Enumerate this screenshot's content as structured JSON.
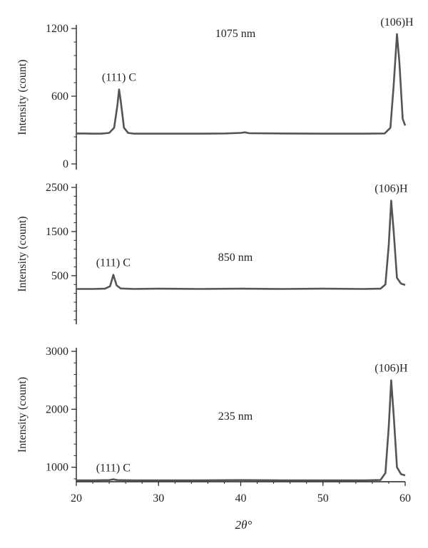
{
  "chart_data": [
    {
      "type": "line",
      "annotation": "1075 nm",
      "ylabel": "Intensity (count)",
      "xlabel": "",
      "xlim": [
        20,
        60
      ],
      "ylim": [
        0,
        1200
      ],
      "yticks": [
        0,
        600,
        1200
      ],
      "peak_labels": [
        {
          "text": "(111) C",
          "x": 25.2,
          "y": 660
        },
        {
          "text": "(106)H",
          "x": 59.0,
          "y": 1150
        }
      ],
      "series": [
        {
          "values": [
            [
              20,
              270
            ],
            [
              21,
              270
            ],
            [
              22,
              268
            ],
            [
              23,
              268
            ],
            [
              24,
              275
            ],
            [
              24.6,
              320
            ],
            [
              25.0,
              520
            ],
            [
              25.2,
              660
            ],
            [
              25.4,
              560
            ],
            [
              25.8,
              320
            ],
            [
              26.3,
              275
            ],
            [
              27,
              268
            ],
            [
              30,
              268
            ],
            [
              35,
              268
            ],
            [
              38,
              270
            ],
            [
              40,
              275
            ],
            [
              40.5,
              280
            ],
            [
              41,
              272
            ],
            [
              45,
              270
            ],
            [
              50,
              268
            ],
            [
              55,
              268
            ],
            [
              57.5,
              270
            ],
            [
              58.2,
              320
            ],
            [
              58.6,
              700
            ],
            [
              59.0,
              1150
            ],
            [
              59.3,
              900
            ],
            [
              59.7,
              400
            ],
            [
              60.0,
              340
            ]
          ]
        }
      ]
    },
    {
      "type": "line",
      "annotation": "850 nm",
      "ylabel": "Intensity (count)",
      "xlabel": "",
      "xlim": [
        20,
        60
      ],
      "ylim": [
        -600,
        2500
      ],
      "yticks": [
        500,
        1500,
        2500
      ],
      "peak_labels": [
        {
          "text": "(111) C",
          "x": 24.5,
          "y": 520
        },
        {
          "text": "(106)H",
          "x": 58.3,
          "y": 2200
        }
      ],
      "series": [
        {
          "values": [
            [
              20,
              200
            ],
            [
              22,
              200
            ],
            [
              23.5,
              205
            ],
            [
              24.1,
              260
            ],
            [
              24.5,
              520
            ],
            [
              24.9,
              280
            ],
            [
              25.4,
              210
            ],
            [
              27,
              200
            ],
            [
              30,
              205
            ],
            [
              35,
              200
            ],
            [
              40,
              205
            ],
            [
              45,
              200
            ],
            [
              50,
              205
            ],
            [
              55,
              200
            ],
            [
              57.0,
              205
            ],
            [
              57.6,
              300
            ],
            [
              58.0,
              1200
            ],
            [
              58.3,
              2200
            ],
            [
              58.6,
              1500
            ],
            [
              59.0,
              450
            ],
            [
              59.5,
              320
            ],
            [
              60.0,
              290
            ]
          ]
        }
      ]
    },
    {
      "type": "line",
      "annotation": "235 nm",
      "ylabel": "Intensity (count)",
      "xlabel": "2θ°",
      "xlim": [
        20,
        60
      ],
      "ylim": [
        750,
        3000
      ],
      "yticks": [
        1000,
        2000,
        3000
      ],
      "xticks": [
        20,
        30,
        40,
        50,
        60
      ],
      "peak_labels": [
        {
          "text": "(111) C",
          "x": 24.5,
          "y": 780
        },
        {
          "text": "(106)H",
          "x": 58.3,
          "y": 2500
        }
      ],
      "series": [
        {
          "values": [
            [
              20,
              775
            ],
            [
              22,
              775
            ],
            [
              24,
              778
            ],
            [
              24.5,
              790
            ],
            [
              25,
              778
            ],
            [
              27,
              775
            ],
            [
              30,
              775
            ],
            [
              35,
              775
            ],
            [
              40,
              778
            ],
            [
              45,
              775
            ],
            [
              50,
              775
            ],
            [
              55,
              775
            ],
            [
              57.0,
              780
            ],
            [
              57.6,
              900
            ],
            [
              58.0,
              1700
            ],
            [
              58.3,
              2500
            ],
            [
              58.6,
              1900
            ],
            [
              59.0,
              1000
            ],
            [
              59.5,
              880
            ],
            [
              60.0,
              860
            ]
          ]
        }
      ]
    }
  ]
}
